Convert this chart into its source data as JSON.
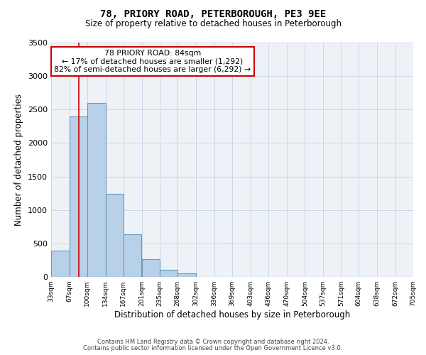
{
  "title": "78, PRIORY ROAD, PETERBOROUGH, PE3 9EE",
  "subtitle": "Size of property relative to detached houses in Peterborough",
  "xlabel": "Distribution of detached houses by size in Peterborough",
  "ylabel": "Number of detached properties",
  "footnote1": "Contains HM Land Registry data © Crown copyright and database right 2024.",
  "footnote2": "Contains public sector information licensed under the Open Government Licence v3.0.",
  "bar_edges": [
    33,
    67,
    100,
    134,
    167,
    201,
    235,
    268,
    302,
    336,
    369,
    403,
    436,
    470,
    504,
    537,
    571,
    604,
    638,
    672,
    705
  ],
  "bar_heights": [
    390,
    2400,
    2600,
    1240,
    640,
    260,
    105,
    50,
    0,
    0,
    0,
    0,
    0,
    0,
    0,
    0,
    0,
    0,
    0,
    0
  ],
  "bar_color": "#b8d0e8",
  "bar_edge_color": "#6699bb",
  "bar_linewidth": 0.8,
  "property_line_x": 84,
  "property_line_color": "#cc0000",
  "ylim": [
    0,
    3500
  ],
  "yticks": [
    0,
    500,
    1000,
    1500,
    2000,
    2500,
    3000,
    3500
  ],
  "grid_color": "#c8d8e8",
  "bg_color": "#eef2f7",
  "annotation_title": "78 PRIORY ROAD: 84sqm",
  "annotation_line1": "← 17% of detached houses are smaller (1,292)",
  "annotation_line2": "82% of semi-detached houses are larger (6,292) →",
  "annotation_box_color": "#ffffff",
  "annotation_border_color": "#cc0000",
  "tick_labels": [
    "33sqm",
    "67sqm",
    "100sqm",
    "134sqm",
    "167sqm",
    "201sqm",
    "235sqm",
    "268sqm",
    "302sqm",
    "336sqm",
    "369sqm",
    "403sqm",
    "436sqm",
    "470sqm",
    "504sqm",
    "537sqm",
    "571sqm",
    "604sqm",
    "638sqm",
    "672sqm",
    "705sqm"
  ]
}
